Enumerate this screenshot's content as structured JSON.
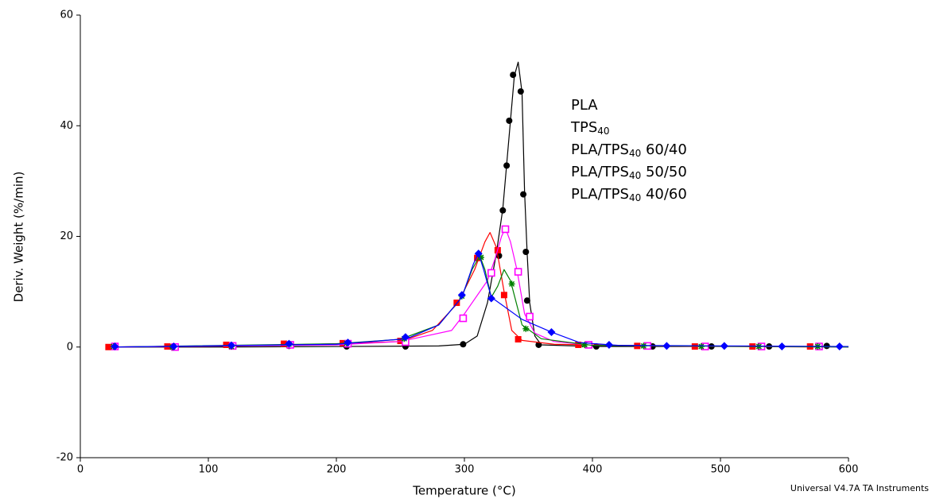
{
  "chart_data": {
    "type": "line",
    "xlabel": "Temperature (°C)",
    "ylabel": "Deriv. Weight (%/min)",
    "note": "Universal V4.7A TA Instruments",
    "xlim": [
      0,
      600
    ],
    "xticks": [
      0,
      100,
      200,
      300,
      400,
      500,
      600
    ],
    "ylim": [
      -20,
      60
    ],
    "yticks": [
      -20,
      0,
      20,
      40,
      60
    ],
    "series": [
      {
        "name": "PLA",
        "color": "#000000",
        "marker": "circle",
        "x": [
          20,
          100,
          200,
          280,
          300,
          310,
          318,
          325,
          330,
          333,
          336,
          339,
          342,
          345,
          347,
          349,
          351,
          355,
          360,
          400,
          600
        ],
        "values": [
          0,
          0,
          0.1,
          0.2,
          0.5,
          2,
          8,
          17,
          25,
          33,
          41,
          49,
          51.5,
          46,
          28,
          17,
          8,
          2,
          0.4,
          0.1,
          0.1
        ],
        "marker_x": [
          26,
          72,
          118,
          163,
          208,
          254,
          299,
          327,
          330,
          333,
          335,
          338,
          344,
          346,
          348,
          349,
          358,
          403,
          447,
          493,
          538,
          583
        ],
        "marker_values": [
          0.1,
          0,
          0.1,
          0.2,
          0.1,
          0.1,
          0.5,
          16.5,
          24.7,
          32.8,
          40.9,
          49.2,
          46.2,
          27.6,
          17.2,
          8.4,
          0.4,
          0.1,
          0.1,
          0.1,
          0.1,
          0.2
        ]
      },
      {
        "name": "TPS40",
        "color": "#ff0000",
        "marker": "square",
        "x": [
          20,
          150,
          200,
          250,
          275,
          295,
          308,
          316,
          320,
          325,
          331,
          337,
          345,
          370,
          450,
          580
        ],
        "values": [
          0,
          0.3,
          0.6,
          1,
          3,
          8,
          14,
          19,
          20.7,
          18,
          10,
          3,
          1.2,
          0.5,
          0.2,
          0
        ],
        "marker_x": [
          22,
          68,
          114,
          159,
          205,
          250,
          294,
          310,
          326,
          331,
          342,
          389,
          435,
          480,
          525,
          570
        ],
        "marker_values": [
          0,
          0.1,
          0.4,
          0.6,
          0.7,
          1.1,
          8,
          16.1,
          17.5,
          9.4,
          1.4,
          0.4,
          0.2,
          0.1,
          0.1,
          0.1
        ]
      },
      {
        "name": "PLA/TPS40 60/40",
        "color": "#ff00ff",
        "marker": "open-square",
        "x": [
          25,
          200,
          250,
          290,
          300,
          312,
          318,
          324,
          329,
          332,
          336,
          341,
          347,
          355,
          370,
          400,
          600
        ],
        "values": [
          0,
          0.4,
          1,
          3,
          6,
          10,
          12,
          16,
          20,
          21.5,
          19,
          14,
          6,
          2.5,
          1,
          0.3,
          0
        ],
        "marker_x": [
          27,
          74,
          119,
          164,
          209,
          254,
          299,
          321,
          332,
          342,
          351,
          397,
          443,
          488,
          532,
          577
        ],
        "marker_values": [
          0.1,
          0,
          0.2,
          0.4,
          0.6,
          0.9,
          5.2,
          13.4,
          21.3,
          13.6,
          5.5,
          0.4,
          0.2,
          0.1,
          0.1,
          0.1
        ]
      },
      {
        "name": "PLA/TPS40 50/50",
        "color": "#008000",
        "marker": "star",
        "x": [
          25,
          200,
          250,
          280,
          298,
          306,
          312,
          316,
          321,
          326,
          331,
          336,
          345,
          360,
          400,
          600
        ],
        "values": [
          0,
          0.6,
          1.4,
          4,
          9,
          14,
          16.5,
          14,
          9,
          11,
          14,
          12,
          4,
          1.5,
          0.3,
          0
        ],
        "marker_x": [
          26,
          72,
          118,
          163,
          208,
          253,
          298,
          313,
          337,
          348,
          394,
          440,
          485,
          530,
          576
        ],
        "marker_values": [
          0.1,
          0,
          0.1,
          0.5,
          0.7,
          1.5,
          9.2,
          16.2,
          11.4,
          3.3,
          0.4,
          0.2,
          0.1,
          0.1,
          0.1
        ]
      },
      {
        "name": "PLA/TPS40 40/60",
        "color": "#0000ff",
        "marker": "diamond",
        "x": [
          25,
          200,
          255,
          280,
          298,
          307,
          311,
          315,
          321,
          330,
          345,
          368,
          390,
          420,
          600
        ],
        "values": [
          0,
          0.5,
          1.5,
          4,
          9,
          15,
          17,
          14,
          9,
          7.5,
          5,
          2.7,
          0.8,
          0.3,
          0.1
        ],
        "marker_x": [
          27,
          73,
          118,
          163,
          209,
          254,
          298,
          311,
          321,
          368,
          413,
          458,
          503,
          548,
          593
        ],
        "marker_values": [
          0.1,
          0.1,
          0.3,
          0.6,
          0.8,
          1.8,
          9.4,
          16.9,
          8.8,
          2.7,
          0.4,
          0.2,
          0.2,
          0.1,
          0.1
        ]
      }
    ]
  }
}
